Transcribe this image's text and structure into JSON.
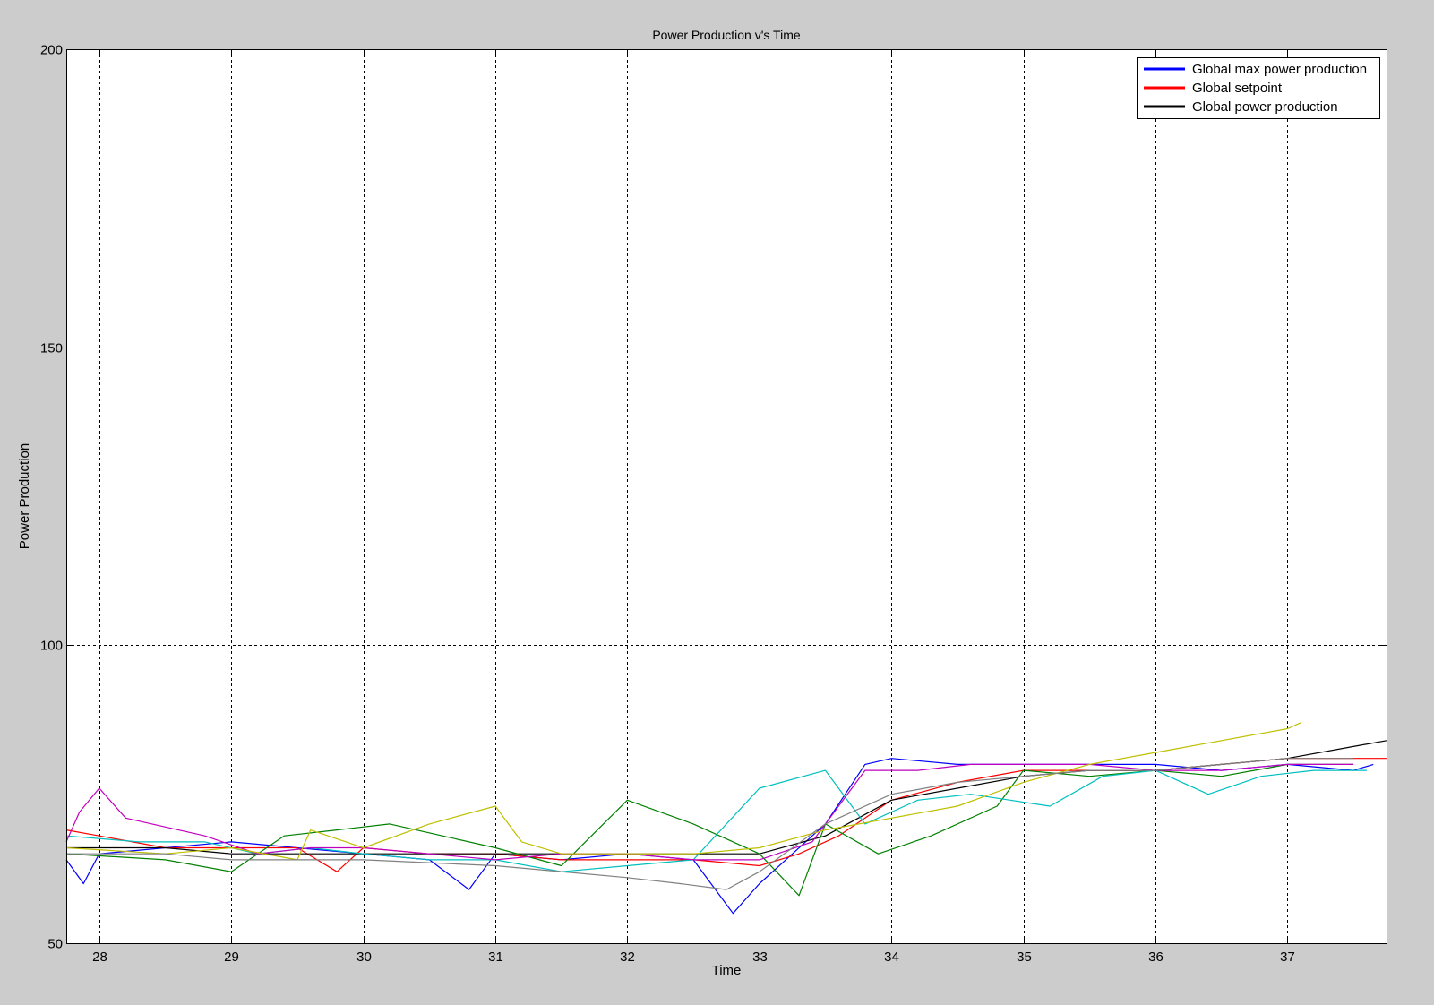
{
  "chart_data": {
    "type": "line",
    "title": "Power Production v's Time",
    "xlabel": "Time",
    "ylabel": "Power Production",
    "xlim": [
      27.75,
      37.75
    ],
    "ylim": [
      50,
      200
    ],
    "xticks": [
      "28",
      "29",
      "30",
      "31",
      "32",
      "33",
      "34",
      "35",
      "36",
      "37"
    ],
    "yticks": [
      "50",
      "100",
      "150",
      "200"
    ],
    "grid": true,
    "legend_position": "top-right",
    "legend": [
      {
        "label": "Global max power production",
        "color": "#0000ff"
      },
      {
        "label": "Global setpoint",
        "color": "#ff0000"
      },
      {
        "label": "Global power production",
        "color": "#000000"
      }
    ],
    "series": [
      {
        "color": "#0000ff",
        "x": [
          27.75,
          27.88,
          28.0,
          28.5,
          29.0,
          29.5,
          30.0,
          30.5,
          30.8,
          31.0,
          31.5,
          32.0,
          32.5,
          32.8,
          33.0,
          33.2,
          33.5,
          33.8,
          34.0,
          34.5,
          35.0,
          35.5,
          36.0,
          36.5,
          37.0,
          37.5,
          37.65
        ],
        "y": [
          64,
          60,
          65,
          66,
          67,
          66,
          65,
          64,
          59,
          65,
          64,
          65,
          64,
          55,
          60,
          64,
          70,
          80,
          81,
          80,
          80,
          80,
          80,
          79,
          80,
          79,
          80
        ]
      },
      {
        "color": "#ff0000",
        "x": [
          27.75,
          28.0,
          28.5,
          29.0,
          29.5,
          29.8,
          30.0,
          30.5,
          31.0,
          31.5,
          32.0,
          32.5,
          33.0,
          33.3,
          33.6,
          34.0,
          34.5,
          35.0,
          35.5,
          36.0,
          36.5,
          37.0,
          37.5,
          37.75
        ],
        "y": [
          69,
          68,
          66,
          66,
          66,
          62,
          66,
          65,
          65,
          64,
          64,
          64,
          63,
          65,
          68,
          74,
          77,
          79,
          79,
          79,
          80,
          81,
          81,
          81
        ]
      },
      {
        "color": "#000000",
        "x": [
          27.75,
          28.5,
          29.0,
          29.5,
          30.0,
          30.5,
          31.0,
          31.5,
          32.0,
          32.5,
          33.0,
          33.5,
          34.0,
          34.5,
          35.0,
          35.5,
          36.0,
          36.5,
          37.0,
          37.5,
          37.75
        ],
        "y": [
          66,
          66,
          65,
          65,
          65,
          65,
          65,
          65,
          65,
          65,
          65,
          68,
          74,
          76,
          78,
          79,
          79,
          80,
          81,
          83,
          84
        ]
      },
      {
        "color": "#008000",
        "x": [
          27.75,
          28.5,
          29.0,
          29.4,
          29.8,
          30.2,
          30.6,
          31.0,
          31.5,
          32.0,
          32.5,
          33.0,
          33.3,
          33.5,
          33.9,
          34.3,
          34.8,
          35.0,
          35.5,
          36.0,
          36.5,
          37.0,
          37.5
        ],
        "y": [
          65,
          64,
          62,
          68,
          69,
          70,
          68,
          66,
          63,
          74,
          70,
          65,
          58,
          70,
          65,
          68,
          73,
          79,
          78,
          79,
          78,
          80,
          80
        ]
      },
      {
        "color": "#00bfbf",
        "x": [
          27.75,
          28.3,
          28.8,
          29.2,
          29.6,
          30.0,
          30.5,
          31.0,
          31.5,
          32.0,
          32.5,
          33.0,
          33.5,
          33.8,
          34.2,
          34.6,
          34.9,
          35.2,
          35.6,
          36.0,
          36.4,
          36.8,
          37.2,
          37.6
        ],
        "y": [
          68,
          67,
          67,
          65,
          66,
          65,
          64,
          64,
          62,
          63,
          64,
          76,
          79,
          70,
          74,
          75,
          74,
          73,
          78,
          79,
          75,
          78,
          79,
          79
        ]
      },
      {
        "color": "#bf00bf",
        "x": [
          27.75,
          27.85,
          28.0,
          28.2,
          28.8,
          29.2,
          29.6,
          30.0,
          30.5,
          31.0,
          31.5,
          32.0,
          32.5,
          33.0,
          33.4,
          33.8,
          34.2,
          34.6,
          35.0,
          35.5,
          36.0,
          36.5,
          37.0,
          37.5
        ],
        "y": [
          67,
          72,
          76,
          71,
          68,
          65,
          66,
          66,
          65,
          64,
          65,
          65,
          64,
          64,
          67,
          79,
          79,
          80,
          80,
          80,
          79,
          79,
          80,
          80
        ]
      },
      {
        "color": "#bfbf00",
        "x": [
          27.75,
          28.5,
          29.0,
          29.5,
          29.6,
          30.0,
          30.5,
          31.0,
          31.2,
          31.5,
          32.0,
          32.5,
          33.0,
          33.5,
          34.0,
          34.5,
          35.0,
          35.5,
          36.0,
          36.5,
          37.0,
          37.1
        ],
        "y": [
          66,
          65,
          66,
          64,
          69,
          66,
          70,
          73,
          67,
          65,
          65,
          65,
          66,
          69,
          71,
          73,
          77,
          80,
          82,
          84,
          86,
          87
        ]
      },
      {
        "color": "#808080",
        "x": [
          27.75,
          28.5,
          29.0,
          30.0,
          31.0,
          32.0,
          32.4,
          32.75,
          33.0,
          33.5,
          34.0,
          34.5,
          35.0,
          35.5,
          36.0,
          36.5,
          37.0,
          37.5
        ],
        "y": [
          65,
          65,
          64,
          64,
          63,
          61,
          60,
          59,
          62,
          70,
          75,
          77,
          78,
          79,
          79,
          80,
          81,
          81
        ]
      }
    ]
  }
}
